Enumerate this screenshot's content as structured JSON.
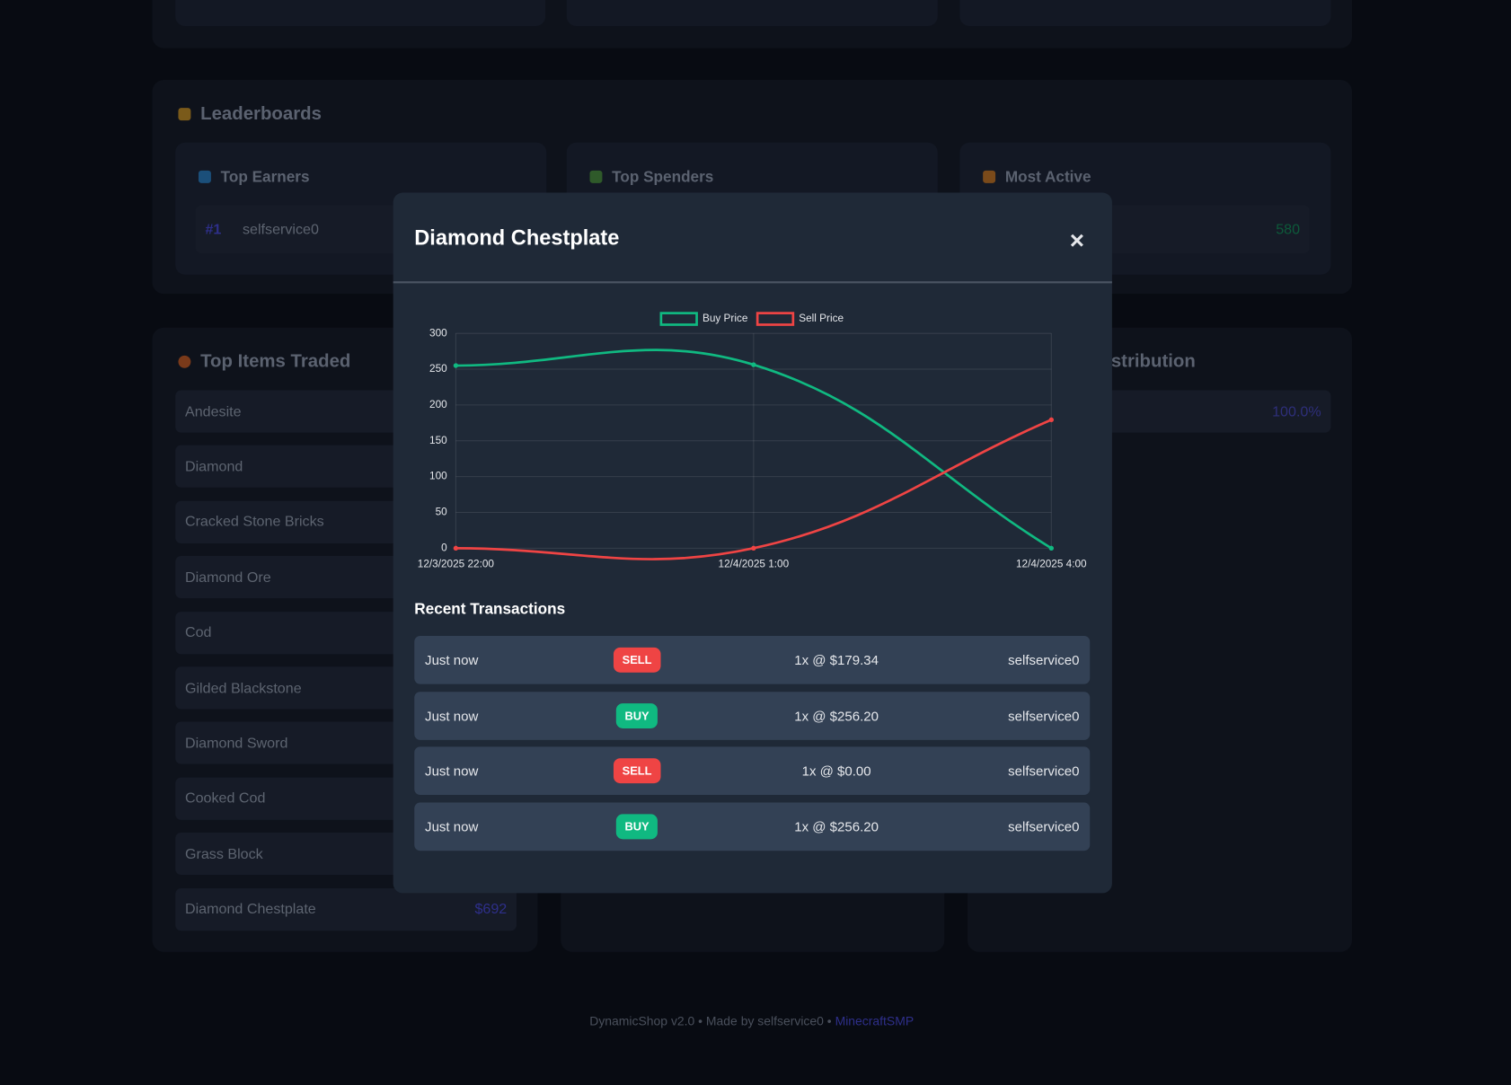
{
  "leaderboards": {
    "title": "Leaderboards",
    "cards": [
      {
        "title": "Top Earners",
        "rank": "#1",
        "name": "selfservice0"
      },
      {
        "title": "Top Spenders"
      },
      {
        "title": "Most Active",
        "value": "580"
      }
    ]
  },
  "top_items": {
    "title": "Top Items Traded",
    "items": [
      "Andesite",
      "Diamond",
      "Cracked Stone Bricks",
      "Diamond Ore",
      "Cod",
      "Gilded Blackstone",
      "Diamond Sword",
      "Cooked Cod",
      "Grass Block",
      "Diamond Chestplate"
    ],
    "last_value": "$692"
  },
  "distribution": {
    "title": "stribution",
    "value": "100.0%"
  },
  "footer": {
    "text": "DynamicShop v2.0 • Made by selfservice0 •",
    "link": "MinecraftSMP"
  },
  "modal": {
    "title": "Diamond Chestplate",
    "close": "×",
    "chart_data": {
      "type": "line",
      "categories": [
        "12/3/2025 22:00",
        "12/4/2025 1:00",
        "12/4/2025 4:00"
      ],
      "series": [
        {
          "name": "Buy Price",
          "color": "#10b981",
          "values": [
            255,
            256.2,
            0
          ]
        },
        {
          "name": "Sell Price",
          "color": "#ef4444",
          "values": [
            0,
            0,
            179.34
          ]
        }
      ],
      "ylim": [
        0,
        300
      ],
      "yticks": [
        0,
        50,
        100,
        150,
        200,
        250,
        300
      ],
      "grid": true,
      "legend": "top"
    },
    "transactions_title": "Recent Transactions",
    "transactions": [
      {
        "time": "Just now",
        "type": "SELL",
        "detail": "1x @ $179.34",
        "player": "selfservice0"
      },
      {
        "time": "Just now",
        "type": "BUY",
        "detail": "1x @ $256.20",
        "player": "selfservice0"
      },
      {
        "time": "Just now",
        "type": "SELL",
        "detail": "1x @ $0.00",
        "player": "selfservice0"
      },
      {
        "time": "Just now",
        "type": "BUY",
        "detail": "1x @ $256.20",
        "player": "selfservice0"
      }
    ]
  }
}
